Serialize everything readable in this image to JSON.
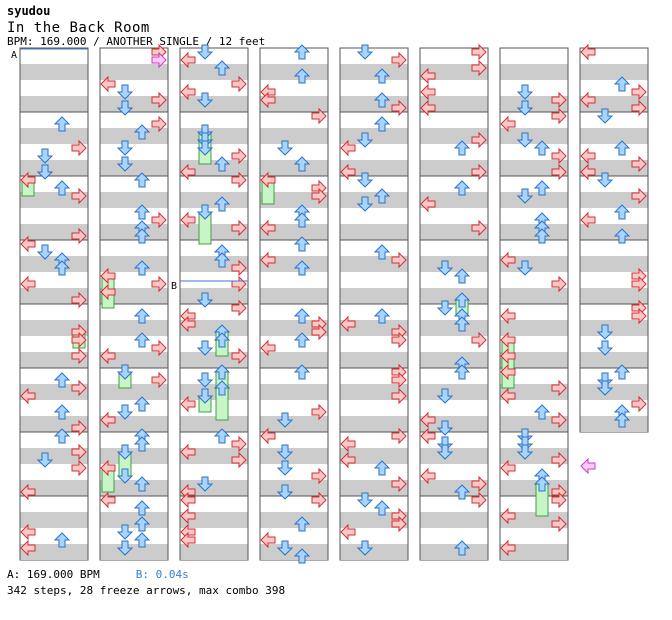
{
  "header": {
    "artist": "syudou",
    "title": "In the Back Room",
    "meta": "BPM: 169.000 / ANOTHER SINGLE / 12 feet"
  },
  "footer": {
    "bpm_a": "A: 169.000 BPM",
    "bpm_b": "B: 0.04s",
    "summary": "342 steps, 28 freeze arrows, max combo 398"
  },
  "markers": {
    "a": "A",
    "b": "B"
  },
  "colors": {
    "stripe": "#cccccc",
    "border": "#555555",
    "red_arrow": "#ffc8c8",
    "red_stroke": "#d03030",
    "blue_arrow": "#a8d4ff",
    "blue_stroke": "#2a72c8",
    "freeze_fill": "#c8f5c8",
    "freeze_stroke": "#40a040",
    "pink_arrow": "#ffc8ff",
    "pink_stroke": "#c040c0"
  },
  "chart_data": {
    "type": "step_chart",
    "columns": 8,
    "measures_per_column": 8,
    "total_measures": 62,
    "lanes": [
      "left",
      "down",
      "up",
      "right"
    ],
    "steps": 342,
    "freeze_arrows": 28,
    "max_combo": 398,
    "bpm": 169.0,
    "stop_b_seconds": 0.04
  }
}
